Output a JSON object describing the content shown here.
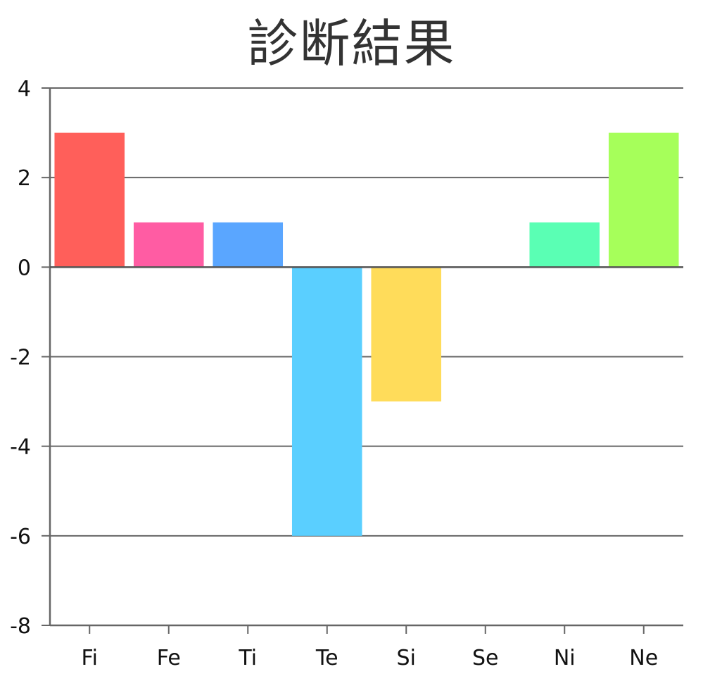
{
  "chart_data": {
    "type": "bar",
    "title": "診断結果",
    "xlabel": "",
    "ylabel": "",
    "categories": [
      "Fi",
      "Fe",
      "Ti",
      "Te",
      "Si",
      "Se",
      "Ni",
      "Ne"
    ],
    "values": [
      3,
      1,
      1,
      -6,
      -3,
      0,
      1,
      3
    ],
    "colors": [
      "#ff5f5a",
      "#ff5ca3",
      "#5aa6ff",
      "#5acfff",
      "#ffdc5a",
      "#ffffff",
      "#5affb4",
      "#a6ff5a"
    ],
    "ylim": [
      -8,
      4
    ],
    "yticks": [
      4,
      2,
      0,
      -2,
      -4,
      -6,
      -8
    ],
    "grid": true,
    "legend": "none"
  }
}
